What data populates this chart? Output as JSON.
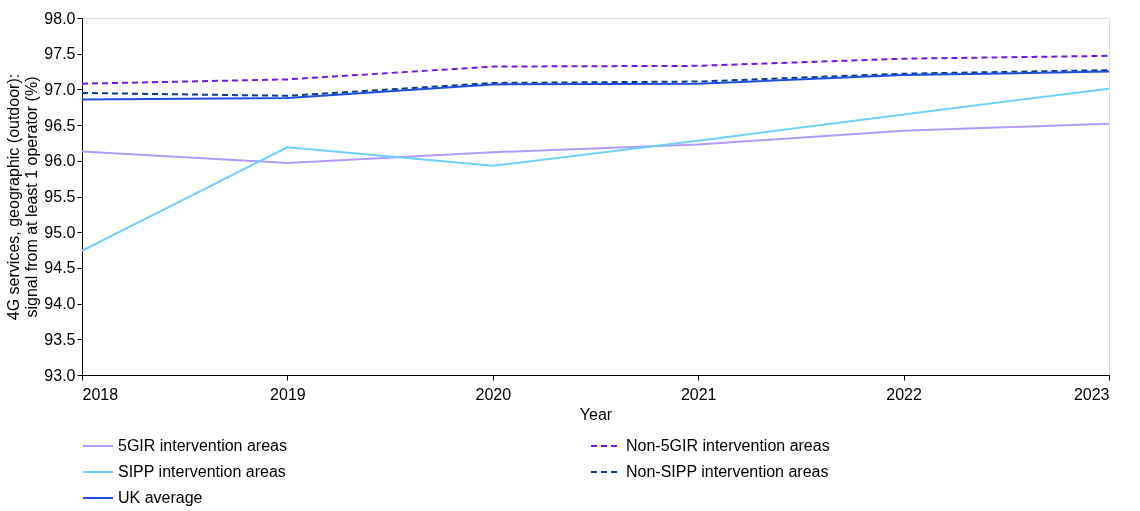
{
  "chart_data": {
    "type": "line",
    "xlabel": "Year",
    "ylabel": "4G services, geographic (outdoor): signal from at least 1 operator (%)",
    "x": [
      2018,
      2019,
      2020,
      2021,
      2022,
      2023
    ],
    "xlim": [
      2018,
      2023
    ],
    "xticks": [
      2018,
      2019,
      2020,
      2021,
      2022,
      2023
    ],
    "ylim": [
      93.0,
      98.0
    ],
    "yticks": [
      {
        "value": 93,
        "label": "93.0"
      },
      {
        "value": 93.5,
        "label": "93.5"
      },
      {
        "value": 94,
        "label": "94.0"
      },
      {
        "value": 94.5,
        "label": "94.5"
      },
      {
        "value": 95,
        "label": "95.0"
      },
      {
        "value": 95.5,
        "label": "95.5"
      },
      {
        "value": 96,
        "label": "96.0"
      },
      {
        "value": 96.5,
        "label": "96.5"
      },
      {
        "value": 97,
        "label": "97.0"
      },
      {
        "value": 97.5,
        "label": "97.5"
      },
      {
        "value": 98,
        "label": "98.0"
      }
    ],
    "grid": false,
    "legend": "bottom",
    "marker": "none",
    "series": [
      {
        "name": "5GIR intervention areas",
        "color": "#b39afc",
        "line_style": "solid",
        "values": [
          96.13,
          95.97,
          96.12,
          96.23,
          96.42,
          96.52
        ]
      },
      {
        "name": "Non-5GIR intervention areas",
        "color": "#7116ec",
        "line_style": "dashed",
        "values": [
          97.08,
          97.14,
          97.32,
          97.33,
          97.43,
          97.47
        ]
      },
      {
        "name": "SIPP intervention areas",
        "color": "#6fd0fc",
        "line_style": "solid",
        "values": [
          94.74,
          96.19,
          95.93,
          96.28,
          96.65,
          97.01
        ]
      },
      {
        "name": "Non-SIPP intervention areas",
        "color": "#0b3b8c",
        "line_style": "dashed",
        "values": [
          96.95,
          96.91,
          97.09,
          97.11,
          97.22,
          97.27
        ]
      },
      {
        "name": "UK average",
        "color": "#1f4fe0",
        "line_style": "solid",
        "values": [
          96.86,
          96.88,
          97.07,
          97.08,
          97.2,
          97.25
        ]
      }
    ]
  }
}
